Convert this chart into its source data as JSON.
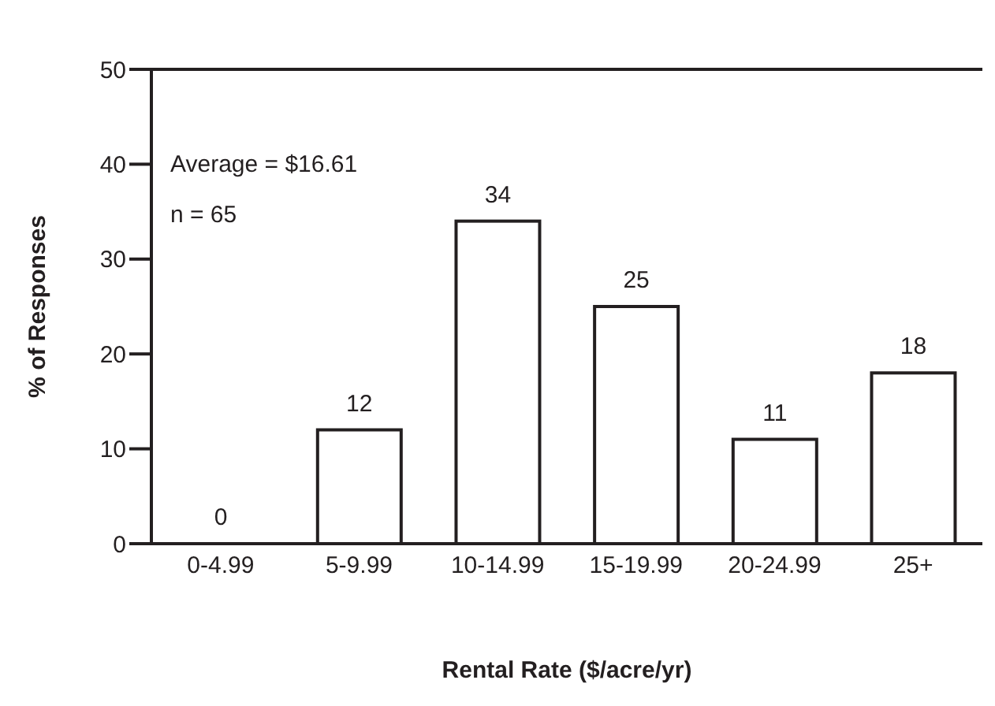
{
  "chart_data": {
    "type": "bar",
    "xlabel": "Rental Rate ($/acre/yr)",
    "ylabel": "% of Responses",
    "categories": [
      "0-4.99",
      "5-9.99",
      "10-14.99",
      "15-19.99",
      "20-24.99",
      "25+"
    ],
    "values": [
      0,
      12,
      34,
      25,
      11,
      18
    ],
    "color": "#ffffff",
    "ylim": [
      0,
      50
    ],
    "yticks": [
      0,
      10,
      20,
      30,
      40,
      50
    ],
    "data_labels": true,
    "grid": false,
    "legend": false,
    "annotations": [
      "Average = $16.61",
      "n = 65"
    ]
  }
}
